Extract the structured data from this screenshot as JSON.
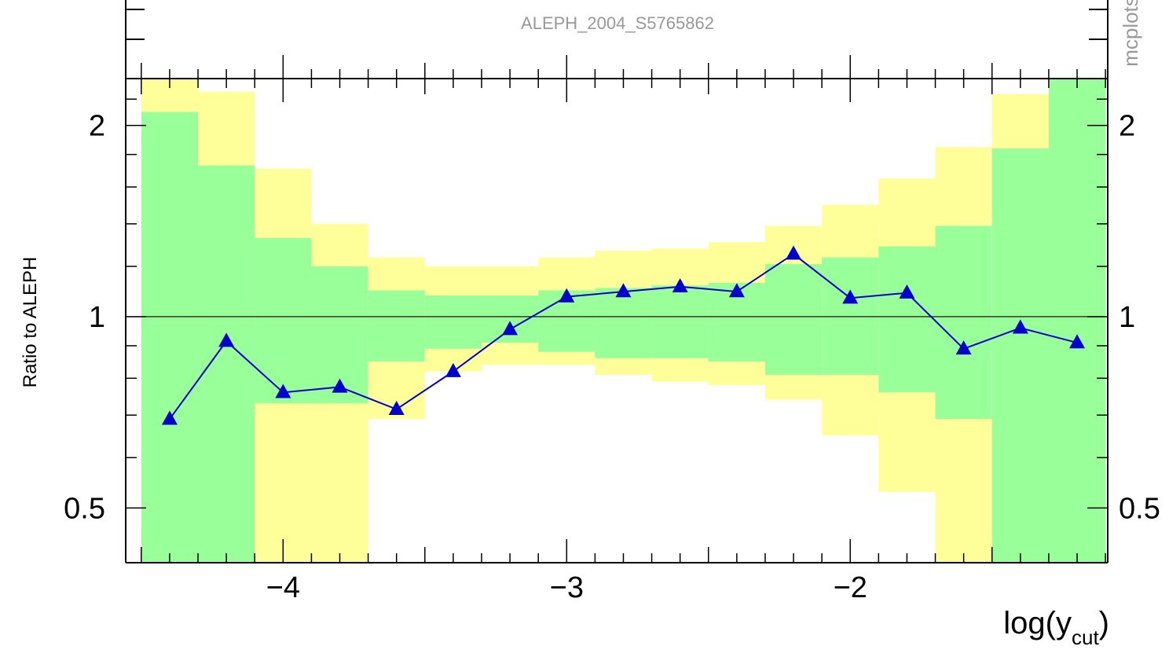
{
  "chart_data": {
    "type": "line",
    "title": "ALEPH_2004_S5765862",
    "side_label": "mcplots",
    "xlabel_base": "log(y",
    "xlabel_sub": "cut",
    "xlabel_close": ")",
    "ylabel": "Ratio to ALEPH",
    "y_log_scale": true,
    "xlim": [
      -4.555,
      -1.092
    ],
    "ylim": [
      0.41,
      2.37
    ],
    "grid": false,
    "reference_line": 1,
    "x_ticks": [
      {
        "value": -4,
        "label": "−4"
      },
      {
        "value": -3,
        "label": "−3"
      },
      {
        "value": -2,
        "label": "−2"
      }
    ],
    "y_ticks": [
      {
        "value": 2,
        "label": "2"
      },
      {
        "value": 1,
        "label": "1"
      },
      {
        "value": 0.5,
        "label": "0.5"
      }
    ],
    "bin_edges": [
      -4.5,
      -4.3,
      -4.1,
      -3.9,
      -3.7,
      -3.5,
      -3.3,
      -3.1,
      -2.9,
      -2.7,
      -2.5,
      -2.3,
      -2.1,
      -1.9,
      -1.7,
      -1.5,
      -1.3,
      -1.1
    ],
    "band_yellow_upper": [
      2.37,
      2.26,
      1.71,
      1.4,
      1.24,
      1.2,
      1.2,
      1.24,
      1.27,
      1.28,
      1.31,
      1.39,
      1.5,
      1.65,
      1.85,
      2.24,
      2.37
    ],
    "band_green_upper": [
      2.1,
      1.73,
      1.33,
      1.2,
      1.1,
      1.08,
      1.08,
      1.1,
      1.11,
      1.12,
      1.13,
      1.21,
      1.24,
      1.29,
      1.39,
      1.84,
      2.37
    ],
    "band_green_lower": [
      0.41,
      0.41,
      0.73,
      0.73,
      0.85,
      0.89,
      0.91,
      0.88,
      0.86,
      0.86,
      0.85,
      0.81,
      0.81,
      0.76,
      0.69,
      0.41,
      0.41
    ],
    "band_yellow_lower": [
      0.41,
      0.41,
      0.41,
      0.41,
      0.69,
      0.82,
      0.84,
      0.84,
      0.81,
      0.79,
      0.78,
      0.74,
      0.65,
      0.53,
      0.41,
      0.41,
      0.41
    ],
    "colors": {
      "band_yellow": "#ffff99",
      "band_green": "#99ff99",
      "series": "#0000cc",
      "axes": "#000000",
      "title": "#999999"
    },
    "series": [
      {
        "marker": "triangle",
        "x": [
          -4.4,
          -4.2,
          -4.0,
          -3.8,
          -3.6,
          -3.4,
          -3.2,
          -3.0,
          -2.8,
          -2.6,
          -2.4,
          -2.2,
          -2.0,
          -1.8,
          -1.6,
          -1.4,
          -1.2
        ],
        "values": [
          0.69,
          0.915,
          0.76,
          0.775,
          0.715,
          0.82,
          0.955,
          1.075,
          1.095,
          1.115,
          1.095,
          1.255,
          1.07,
          1.09,
          0.89,
          0.96,
          0.91
        ]
      }
    ]
  }
}
